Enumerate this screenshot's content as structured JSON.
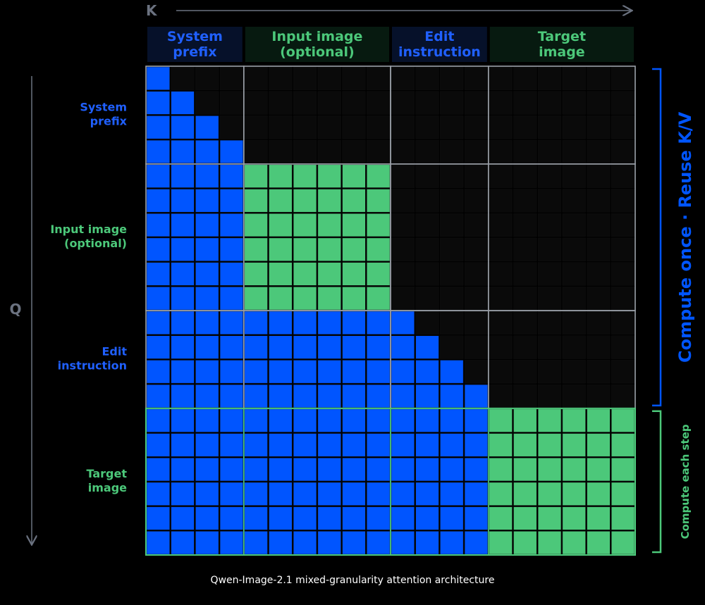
{
  "axes": {
    "k_label": "K",
    "q_label": "Q"
  },
  "segments": [
    {
      "id": "system",
      "label_line1": "System",
      "label_line2": "prefix",
      "tokens": 4,
      "color": "blue"
    },
    {
      "id": "input",
      "label_line1": "Input image",
      "label_line2": "(optional)",
      "tokens": 6,
      "color": "green"
    },
    {
      "id": "edit",
      "label_line1": "Edit",
      "label_line2": "instruction",
      "tokens": 4,
      "color": "blue"
    },
    {
      "id": "target",
      "label_line1": "Target",
      "label_line2": "image",
      "tokens": 6,
      "color": "green"
    }
  ],
  "brackets": {
    "cached": "Compute once · Reuse K/V",
    "per_step": "Compute each step"
  },
  "caption": "Qwen-Image-2.1 mixed-granularity attention architecture",
  "colors": {
    "background": "#000000",
    "blue": "#0055ff",
    "green": "#4cc87a",
    "blue_label": "#2060ff",
    "green_label": "#4cc87a",
    "empty_cell": "#0a0a0a",
    "grid_line": "#111111",
    "block_border": "#9aa0a8",
    "axis": "#6b7280",
    "header_blue_bg": "#06112a",
    "header_green_bg": "#071a10"
  }
}
